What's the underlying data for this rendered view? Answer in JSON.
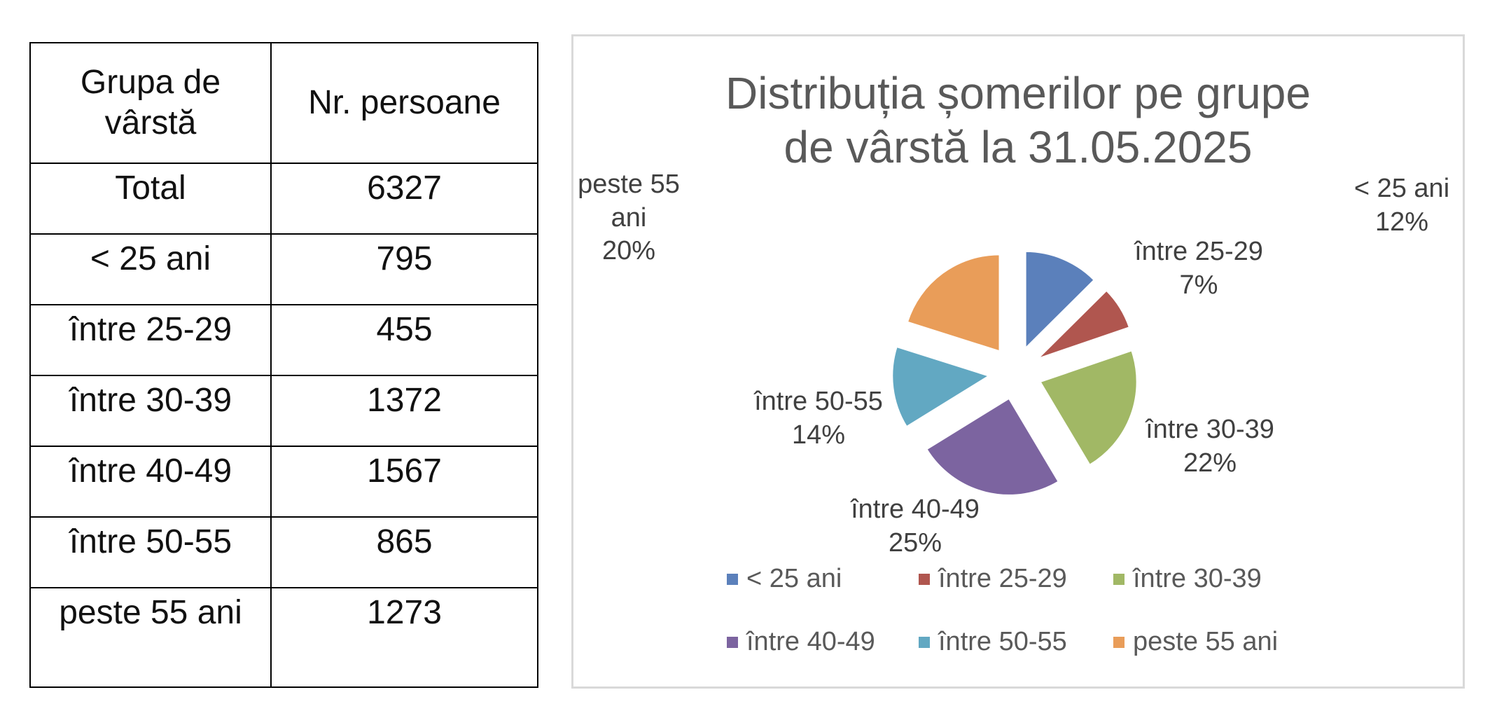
{
  "table": {
    "headers": [
      "Grupa de vârstă",
      "Nr. persoane"
    ],
    "rows": [
      [
        "Total",
        "6327"
      ],
      [
        "< 25 ani",
        "795"
      ],
      [
        "între 25-29",
        "455"
      ],
      [
        "între 30-39",
        "1372"
      ],
      [
        "între 40-49",
        "1567"
      ],
      [
        "între 50-55",
        "865"
      ],
      [
        "peste 55 ani",
        "1273"
      ]
    ]
  },
  "chart_data": {
    "type": "pie",
    "title": "Distribuția șomerilor pe grupe de vârstă la 31.05.2025",
    "categories": [
      "< 25 ani",
      "între 25-29",
      "între 30-39",
      "între 40-49",
      "între 50-55",
      "peste 55 ani"
    ],
    "values": [
      795,
      455,
      1372,
      1567,
      865,
      1273
    ],
    "data_labels": [
      "12%",
      "7%",
      "22%",
      "25%",
      "14%",
      "20%"
    ],
    "colors": [
      "#5b80bb",
      "#b0564f",
      "#a1b865",
      "#7c64a0",
      "#62a8c2",
      "#e99d59"
    ],
    "exploded": true,
    "legend_position": "bottom"
  }
}
